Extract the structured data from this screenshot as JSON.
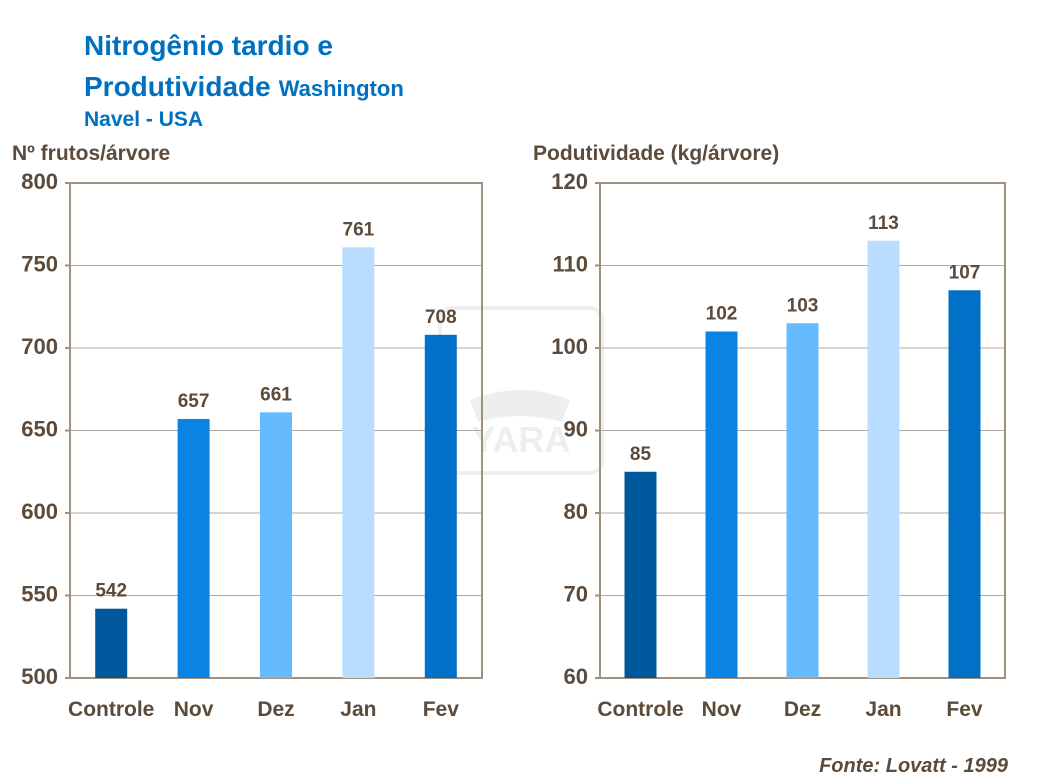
{
  "title": {
    "line1": "Nitrogênio tardio e",
    "line2": "Produtividade",
    "line2_suffix": "Washington",
    "line3": "Navel - USA"
  },
  "watermark": "YARA",
  "source": "Fonte: Lovatt - 1999",
  "chart_data": [
    {
      "type": "bar",
      "y_label": "Nº frutos/árvore",
      "categories": [
        "Controle",
        "Nov",
        "Dez",
        "Jan",
        "Fev"
      ],
      "values": [
        542,
        657,
        661,
        761,
        708
      ],
      "colors": [
        "#00589c",
        "#0a84e4",
        "#66bbff",
        "#b8ddff",
        "#0070c8"
      ],
      "ylim": [
        500,
        800
      ],
      "yticks": [
        500,
        550,
        600,
        650,
        700,
        750,
        800
      ],
      "grid": true
    },
    {
      "type": "bar",
      "y_label": "Podutividade (kg/árvore)",
      "categories": [
        "Controle",
        "Nov",
        "Dez",
        "Jan",
        "Fev"
      ],
      "values": [
        85,
        102,
        103,
        113,
        107
      ],
      "colors": [
        "#00589c",
        "#0a84e4",
        "#66bbff",
        "#b8ddff",
        "#0070c8"
      ],
      "ylim": [
        60,
        120
      ],
      "yticks": [
        60,
        70,
        80,
        90,
        100,
        110,
        120
      ],
      "grid": true
    }
  ]
}
